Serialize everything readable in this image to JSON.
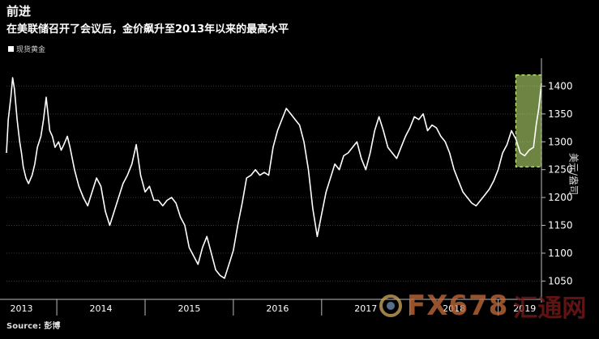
{
  "header": {
    "title": "前进",
    "subtitle": "在美联储召开了会议后，金价飙升至2013年以来的最高水平"
  },
  "legend": {
    "label": "现货黄金"
  },
  "source": "Source: 彭博",
  "watermark": {
    "brand": "FX678",
    "cn": "汇通网"
  },
  "chart_data": {
    "type": "line",
    "ylabel": "美元/盎司",
    "ylim": [
      1020,
      1450
    ],
    "yticks": [
      1050,
      1100,
      1150,
      1200,
      1250,
      1300,
      1350,
      1400
    ],
    "ytick_labels": [
      "1050",
      "1100",
      "1150",
      "1200",
      "1250",
      "1300",
      "1350",
      "1400"
    ],
    "x_range": [
      2013.43,
      2019.49
    ],
    "xtick_labels": [
      "2013",
      "2014",
      "2015",
      "2016",
      "2017",
      "2018",
      "2019"
    ],
    "xtick_positions": [
      2013.6,
      2014.5,
      2015.5,
      2016.5,
      2017.5,
      2018.5,
      2019.3
    ],
    "grid": "horizontal",
    "highlight": {
      "x_start": 2019.2,
      "x_end": 2019.49,
      "y_low": 1255,
      "y_high": 1420,
      "color": "#c8f07a"
    },
    "series": [
      {
        "color": "#ffffff",
        "x": [
          2013.43,
          2013.45,
          2013.48,
          2013.5,
          2013.52,
          2013.55,
          2013.58,
          2013.6,
          2013.62,
          2013.65,
          2013.68,
          2013.72,
          2013.75,
          2013.78,
          2013.82,
          2013.85,
          2013.88,
          2013.92,
          2013.95,
          2013.98,
          2014.02,
          2014.05,
          2014.08,
          2014.12,
          2014.15,
          2014.2,
          2014.25,
          2014.3,
          2014.35,
          2014.4,
          2014.45,
          2014.5,
          2014.55,
          2014.6,
          2014.65,
          2014.7,
          2014.75,
          2014.8,
          2014.85,
          2014.9,
          2014.95,
          2015.0,
          2015.05,
          2015.1,
          2015.15,
          2015.2,
          2015.25,
          2015.3,
          2015.35,
          2015.4,
          2015.45,
          2015.5,
          2015.55,
          2015.6,
          2015.65,
          2015.7,
          2015.75,
          2015.8,
          2015.85,
          2015.9,
          2015.95,
          2016.0,
          2016.05,
          2016.1,
          2016.15,
          2016.2,
          2016.25,
          2016.3,
          2016.35,
          2016.4,
          2016.45,
          2016.5,
          2016.55,
          2016.6,
          2016.65,
          2016.7,
          2016.75,
          2016.8,
          2016.85,
          2016.9,
          2016.95,
          2017.0,
          2017.05,
          2017.1,
          2017.15,
          2017.2,
          2017.25,
          2017.3,
          2017.35,
          2017.4,
          2017.45,
          2017.5,
          2017.55,
          2017.6,
          2017.65,
          2017.7,
          2017.75,
          2017.8,
          2017.85,
          2017.9,
          2017.95,
          2018.0,
          2018.05,
          2018.1,
          2018.15,
          2018.2,
          2018.25,
          2018.3,
          2018.35,
          2018.4,
          2018.45,
          2018.5,
          2018.55,
          2018.6,
          2018.65,
          2018.7,
          2018.75,
          2018.8,
          2018.85,
          2018.9,
          2018.95,
          2019.0,
          2019.05,
          2019.1,
          2019.15,
          2019.2,
          2019.25,
          2019.3,
          2019.35,
          2019.4,
          2019.43,
          2019.46,
          2019.49
        ],
        "y": [
          1280,
          1340,
          1380,
          1415,
          1395,
          1340,
          1300,
          1280,
          1255,
          1235,
          1225,
          1240,
          1260,
          1290,
          1310,
          1340,
          1380,
          1320,
          1310,
          1290,
          1300,
          1285,
          1295,
          1310,
          1290,
          1250,
          1220,
          1200,
          1185,
          1210,
          1235,
          1220,
          1175,
          1150,
          1175,
          1200,
          1225,
          1240,
          1260,
          1295,
          1240,
          1210,
          1220,
          1195,
          1195,
          1185,
          1195,
          1200,
          1190,
          1165,
          1150,
          1110,
          1095,
          1080,
          1110,
          1130,
          1100,
          1070,
          1060,
          1055,
          1080,
          1105,
          1150,
          1190,
          1235,
          1240,
          1250,
          1240,
          1245,
          1240,
          1290,
          1320,
          1340,
          1360,
          1350,
          1340,
          1330,
          1300,
          1250,
          1180,
          1130,
          1170,
          1210,
          1235,
          1260,
          1250,
          1275,
          1280,
          1290,
          1300,
          1270,
          1250,
          1280,
          1320,
          1345,
          1320,
          1290,
          1280,
          1270,
          1290,
          1310,
          1325,
          1345,
          1340,
          1350,
          1320,
          1330,
          1325,
          1310,
          1300,
          1280,
          1250,
          1230,
          1210,
          1200,
          1190,
          1185,
          1195,
          1205,
          1215,
          1230,
          1250,
          1280,
          1295,
          1320,
          1305,
          1280,
          1275,
          1285,
          1290,
          1330,
          1360,
          1405
        ]
      }
    ]
  }
}
